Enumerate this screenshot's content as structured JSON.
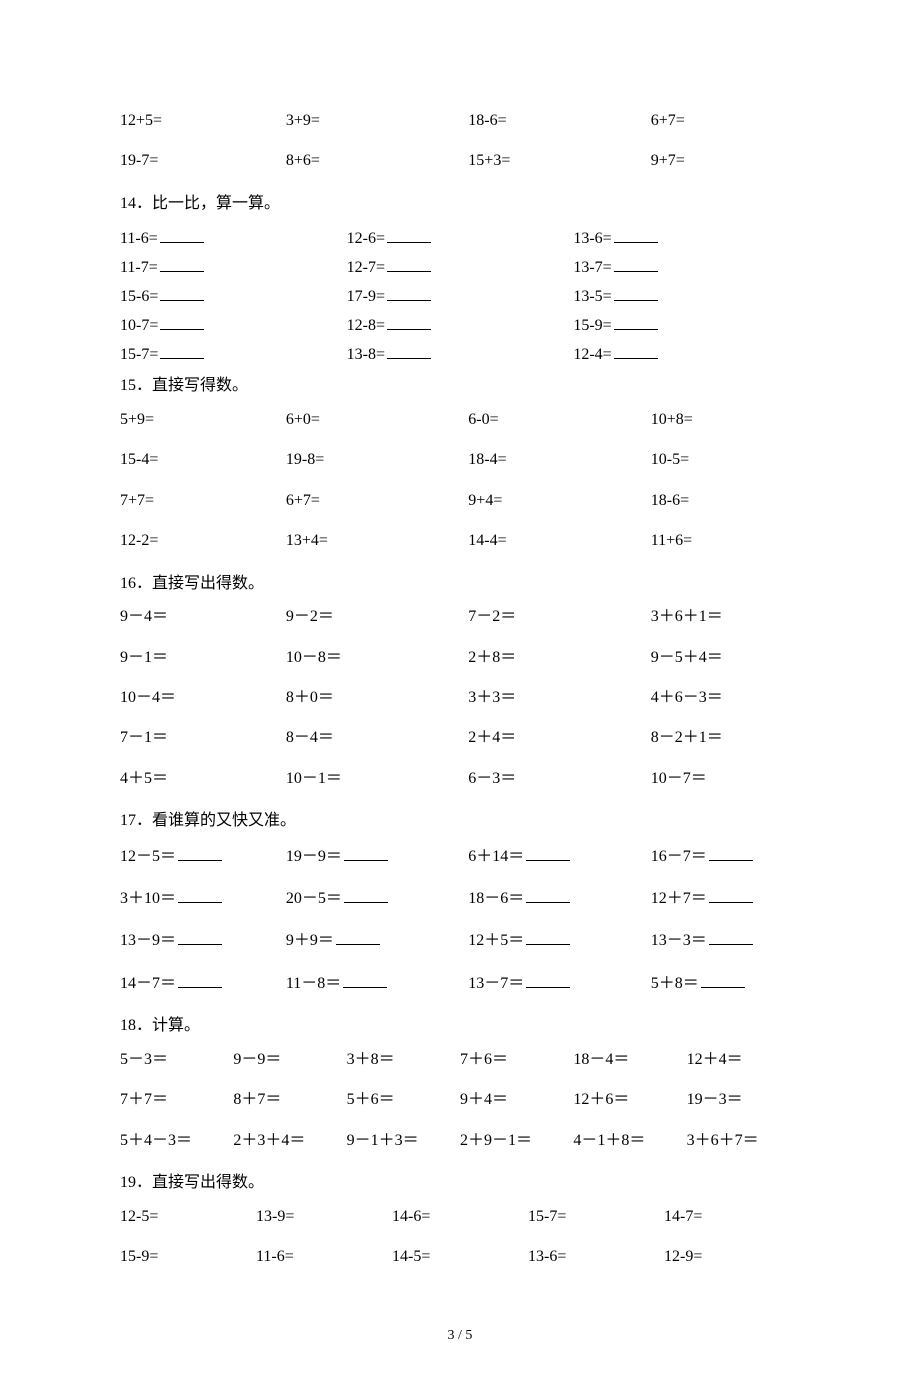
{
  "s13": {
    "r1": [
      "12+5=",
      "3+9=",
      "18-6=",
      "6+7="
    ],
    "r2": [
      "19-7=",
      "8+6=",
      "15+3=",
      "9+7="
    ]
  },
  "s14": {
    "title": "14．比一比，算一算。",
    "r1": [
      "11-6=",
      "12-6=",
      "13-6="
    ],
    "r2": [
      "11-7=",
      "12-7=",
      "13-7="
    ],
    "r3": [
      "15-6=",
      "17-9=",
      "13-5="
    ],
    "r4": [
      "10-7=",
      "12-8=",
      "15-9="
    ],
    "r5": [
      "15-7=",
      "13-8=",
      "12-4="
    ]
  },
  "s15": {
    "title": "15．直接写得数。",
    "r1": [
      "5+9=",
      "6+0=",
      "6-0=",
      "10+8="
    ],
    "r2": [
      "15-4=",
      "19-8=",
      "18-4=",
      "10-5="
    ],
    "r3": [
      "7+7=",
      "6+7=",
      "9+4=",
      "18-6="
    ],
    "r4": [
      "12-2=",
      "13+4=",
      "14-4=",
      "11+6="
    ]
  },
  "s16": {
    "title": "16．直接写出得数。",
    "r1": [
      "9－4＝",
      "9－2＝",
      "7－2＝",
      "3＋6＋1＝"
    ],
    "r2": [
      "9－1＝",
      "10－8＝",
      "2＋8＝",
      "9－5＋4＝"
    ],
    "r3": [
      "10－4＝",
      "8＋0＝",
      "3＋3＝",
      "4＋6－3＝"
    ],
    "r4": [
      "7－1＝",
      "8－4＝",
      "2＋4＝",
      "8－2＋1＝"
    ],
    "r5": [
      "4＋5＝",
      "10－1＝",
      "6－3＝",
      "10－7＝"
    ]
  },
  "s17": {
    "title": "17．看谁算的又快又准。",
    "r1": [
      "12－5＝",
      "19－9＝",
      "6＋14＝",
      "16－7＝"
    ],
    "r2": [
      "3＋10＝",
      "20－5＝",
      "18－6＝",
      "12＋7＝"
    ],
    "r3": [
      "13－9＝",
      "9＋9＝",
      "12＋5＝",
      "13－3＝"
    ],
    "r4": [
      "14－7＝",
      "11－8＝",
      "13－7＝",
      "5＋8＝"
    ]
  },
  "s18": {
    "title": "18．计算。",
    "r1": [
      "5－3＝",
      "9－9＝",
      "3＋8＝",
      "7＋6＝",
      "18－4＝",
      "12＋4＝"
    ],
    "r2": [
      "7＋7＝",
      "8＋7＝",
      "5＋6＝",
      "9＋4＝",
      "12＋6＝",
      "19－3＝"
    ],
    "r3": [
      "5＋4－3＝",
      "2＋3＋4＝",
      "9－1＋3＝",
      "2＋9－1＝",
      "4－1＋8＝",
      "3＋6＋7＝"
    ]
  },
  "s19": {
    "title": "19．直接写出得数。",
    "r1": [
      "12-5=",
      "13-9=",
      "14-6=",
      "15-7=",
      "14-7="
    ],
    "r2": [
      "15-9=",
      "11-6=",
      "14-5=",
      "13-6=",
      "12-9="
    ]
  },
  "footer": "3 / 5"
}
